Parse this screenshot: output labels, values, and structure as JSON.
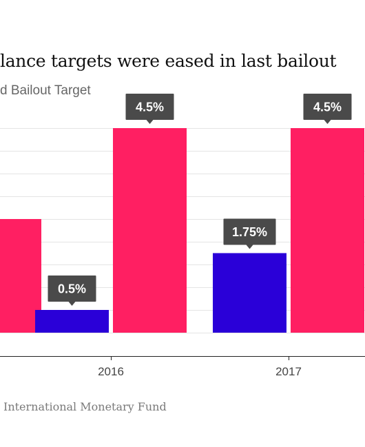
{
  "title": "lance targets were eased in last bailout",
  "legend_label": "d Bailout Target",
  "source": "International Monetary Fund",
  "colors": {
    "first_bailout": "#2a00d8",
    "second_bailout": "#ff1f62",
    "callout": "#4a4a4a",
    "grid": "#e4e4e4",
    "axis": "#222222"
  },
  "chart_data": {
    "type": "bar",
    "categories": [
      "",
      "2016",
      "2017"
    ],
    "series": [
      {
        "values": [
          null,
          0.5,
          1.75
        ]
      },
      {
        "values": [
          2.5,
          4.5,
          4.5
        ]
      }
    ],
    "data_labels": [
      [
        null,
        "0.5%",
        "1.75%"
      ],
      [
        null,
        "4.5%",
        "4.5%"
      ]
    ],
    "ylim": [
      0,
      4.5
    ],
    "grid": true
  }
}
